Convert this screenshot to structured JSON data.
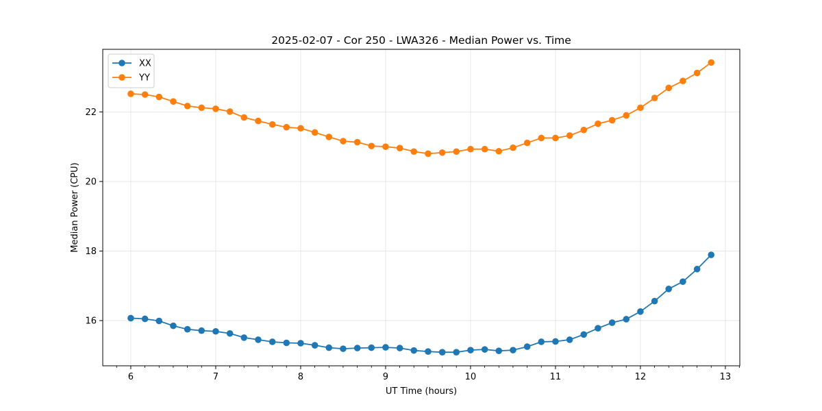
{
  "chart_data": {
    "type": "line",
    "title": "2025-02-07 - Cor 250 - LWA326 - Median Power vs. Time",
    "xlabel": "UT Time (hours)",
    "ylabel": "Median Power (CPU)",
    "xlim": [
      5.67,
      13.17
    ],
    "ylim": [
      14.7,
      23.8
    ],
    "xticks": [
      6,
      7,
      8,
      9,
      10,
      11,
      12,
      13
    ],
    "xtick_labels": [
      "6",
      "7",
      "8",
      "9",
      "10",
      "11",
      "12",
      "13"
    ],
    "yticks": [
      16,
      18,
      20,
      22
    ],
    "ytick_labels": [
      "16",
      "18",
      "20",
      "22"
    ],
    "grid": true,
    "legend_position": "top-left",
    "x": [
      6.0,
      6.167,
      6.333,
      6.5,
      6.667,
      6.833,
      7.0,
      7.167,
      7.333,
      7.5,
      7.667,
      7.833,
      8.0,
      8.167,
      8.333,
      8.5,
      8.667,
      8.833,
      9.0,
      9.167,
      9.333,
      9.5,
      9.667,
      9.833,
      10.0,
      10.167,
      10.333,
      10.5,
      10.667,
      10.833,
      11.0,
      11.167,
      11.333,
      11.5,
      11.667,
      11.833,
      12.0,
      12.167,
      12.333,
      12.5,
      12.667,
      12.833
    ],
    "series": [
      {
        "name": "XX",
        "color": "#1f77b4",
        "values": [
          16.07,
          16.05,
          15.99,
          15.85,
          15.75,
          15.71,
          15.69,
          15.63,
          15.51,
          15.45,
          15.39,
          15.36,
          15.35,
          15.29,
          15.22,
          15.19,
          15.21,
          15.22,
          15.23,
          15.21,
          15.14,
          15.11,
          15.09,
          15.09,
          15.15,
          15.17,
          15.13,
          15.15,
          15.25,
          15.39,
          15.4,
          15.45,
          15.6,
          15.78,
          15.94,
          16.04,
          16.26,
          16.56,
          16.91,
          17.12,
          17.48,
          17.89
        ]
      },
      {
        "name": "YY",
        "color": "#ff7f0e",
        "values": [
          22.52,
          22.5,
          22.43,
          22.3,
          22.17,
          22.12,
          22.09,
          22.01,
          21.84,
          21.74,
          21.64,
          21.56,
          21.53,
          21.41,
          21.28,
          21.16,
          21.13,
          21.02,
          21.0,
          20.96,
          20.86,
          20.8,
          20.83,
          20.86,
          20.93,
          20.93,
          20.87,
          20.97,
          21.11,
          21.25,
          21.25,
          21.32,
          21.48,
          21.66,
          21.76,
          21.9,
          22.12,
          22.4,
          22.69,
          22.89,
          23.12,
          23.42
        ]
      }
    ]
  }
}
